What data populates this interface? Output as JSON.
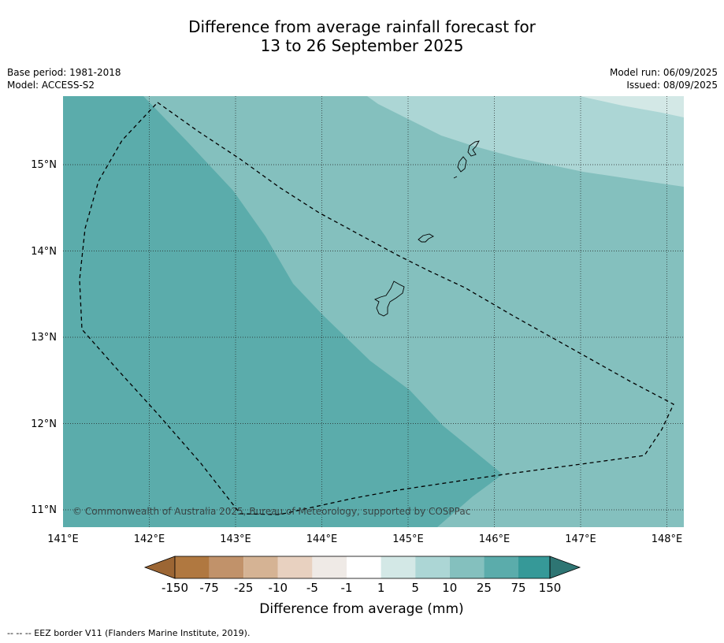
{
  "title_line1": "Difference from average rainfall forecast for",
  "title_line2": "13 to 26 September 2025",
  "left_meta": {
    "base_period": "Base period: 1981-2018",
    "model": "Model: ACCESS-S2"
  },
  "right_meta": {
    "model_run": "Model run: 06/09/2025",
    "issued": "Issued: 08/09/2025"
  },
  "map": {
    "lon_ticks": [
      "141°E",
      "142°E",
      "143°E",
      "144°E",
      "145°E",
      "146°E",
      "147°E",
      "148°E"
    ],
    "lat_ticks": [
      "15°N",
      "14°N",
      "13°N",
      "12°N",
      "11°N"
    ],
    "copyright": "© Commonwealth of Australia 2025, Bureau of Meteorology, supported by COSPPac"
  },
  "colorbar": {
    "title": "Difference from average (mm)",
    "tick_labels": [
      "-150",
      "-75",
      "-25",
      "-10",
      "-5",
      "-1",
      "1",
      "5",
      "10",
      "25",
      "75",
      "150"
    ],
    "colors": [
      "#9c6634",
      "#b07840",
      "#c1926a",
      "#d5b394",
      "#e8d1c0",
      "#efeae6",
      "#ffffff",
      "#d3e8e6",
      "#acd6d5",
      "#84c0be",
      "#5bacab",
      "#369998",
      "#2e7573"
    ]
  },
  "footer": "--  --  -- EEZ border V11 (Flanders Marine Institute, 2019)."
}
